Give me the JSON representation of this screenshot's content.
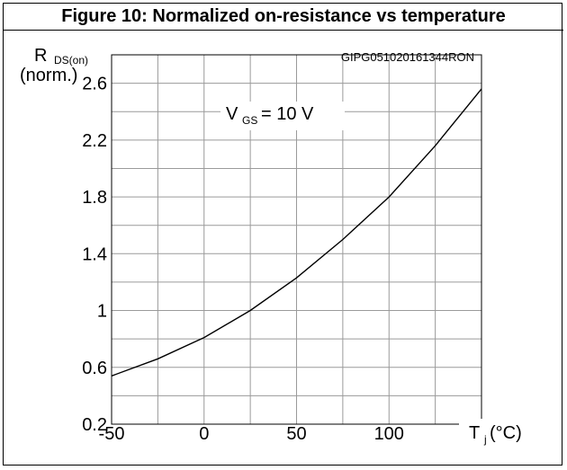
{
  "figure_title": "Figure 10: Normalized on-resistance vs temperature",
  "chart_code": "GIPG051020161344RON",
  "chart_data": {
    "type": "line",
    "title": "Figure 10: Normalized on-resistance vs temperature",
    "ylabel": {
      "main": "R",
      "sub": "DS(on)",
      "unit": "(norm.)"
    },
    "xlabel": {
      "main": "T",
      "sub": "j",
      "unit": "(°C)"
    },
    "annotation": {
      "main": "V",
      "sub": "GS",
      "text": "= 10 V"
    },
    "xlim": [
      -50,
      150
    ],
    "ylim": [
      0.2,
      2.8
    ],
    "x_ticks": [
      -50,
      0,
      50,
      100
    ],
    "x_tick_labels": [
      "-50",
      "0",
      "50",
      "100"
    ],
    "y_ticks": [
      0.2,
      0.6,
      1,
      1.4,
      1.8,
      2.2,
      2.6
    ],
    "y_tick_labels": [
      "0.2",
      "0.6",
      "1",
      "1.4",
      "1.8",
      "2.2",
      "2.6"
    ],
    "grid": true,
    "series": [
      {
        "x": [
          -50,
          -25,
          0,
          25,
          50,
          75,
          100,
          125,
          150
        ],
        "y": [
          0.54,
          0.66,
          0.81,
          1.0,
          1.23,
          1.5,
          1.8,
          2.16,
          2.56
        ]
      }
    ]
  }
}
